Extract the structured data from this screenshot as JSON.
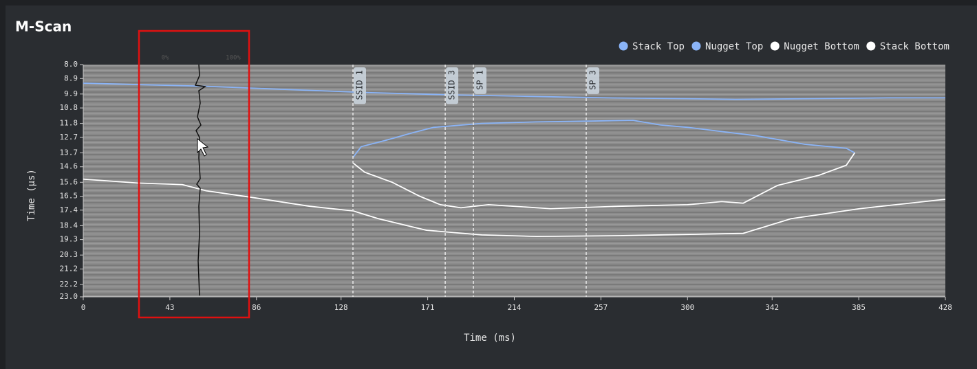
{
  "chart_data": {
    "type": "line",
    "title": "M-Scan",
    "x_label": "Time (ms)",
    "y_label": "Time (µs)",
    "xlim": [
      0,
      428
    ],
    "xticks": [
      0,
      43,
      86,
      128,
      171,
      214,
      257,
      300,
      342,
      385,
      428
    ],
    "ylim": [
      23,
      8
    ],
    "yticks": [
      {
        "value": 8,
        "label": "8.0"
      },
      8.9,
      9.9,
      10.8,
      11.8,
      12.7,
      13.7,
      14.6,
      15.6,
      16.5,
      17.4,
      18.4,
      19.3,
      20.3,
      21.2,
      22.2,
      {
        "value": 23,
        "label": "23.0"
      }
    ],
    "series": [
      {
        "name": "Stack Top",
        "color": "#8ab4f8",
        "x": [
          0,
          30,
          60,
          100,
          140,
          180,
          220,
          260,
          300,
          324,
          360,
          400,
          428
        ],
        "values": [
          9.2,
          9.3,
          9.4,
          9.6,
          9.8,
          9.95,
          10.05,
          10.15,
          10.2,
          10.25,
          10.2,
          10.15,
          10.15
        ]
      },
      {
        "name": "Nugget Top",
        "color": "#8ab4f8",
        "x": [
          133.9,
          138,
          150,
          163.6,
          174,
          197.8,
          225,
          252,
          273,
          286.6,
          300,
          334.4,
          358.3,
          378.8,
          383
        ],
        "values": [
          14.0,
          13.3,
          12.9,
          12.4,
          12.05,
          11.8,
          11.7,
          11.65,
          11.6,
          11.9,
          12.05,
          12.6,
          13.15,
          13.4,
          13.7
        ]
      },
      {
        "name": "Nugget Bottom",
        "color": "#ffffff",
        "x": [
          133.9,
          139.7,
          153.4,
          167,
          177.3,
          187.5,
          201.2,
          232,
          266,
          300,
          317,
          327.6,
          344.7,
          365.2,
          378.8,
          383
        ],
        "values": [
          14.35,
          14.95,
          15.6,
          16.5,
          17.05,
          17.25,
          17.05,
          17.3,
          17.15,
          17.05,
          16.85,
          16.95,
          15.8,
          15.15,
          14.5,
          13.7
        ]
      },
      {
        "name": "Stack Bottom",
        "color": "#ffffff",
        "x": [
          0,
          27,
          49.2,
          61,
          85,
          112.4,
          133.9,
          146.5,
          170.4,
          197.8,
          225,
          266,
          327.6,
          351.5,
          385.6,
          428
        ],
        "values": [
          15.4,
          15.65,
          15.75,
          16.15,
          16.6,
          17.15,
          17.45,
          17.95,
          18.7,
          19.0,
          19.1,
          19.05,
          18.9,
          17.95,
          17.3,
          16.7
        ]
      }
    ],
    "markers": [
      {
        "label": "SSID 1",
        "x": 133.9
      },
      {
        "label": "SSID 3",
        "x": 179.7
      },
      {
        "label": "SP 1",
        "x": 193.7
      },
      {
        "label": "SP 3",
        "x": 249.7
      }
    ],
    "a_scan": {
      "min_label": "0%",
      "max_label": "100%"
    }
  }
}
